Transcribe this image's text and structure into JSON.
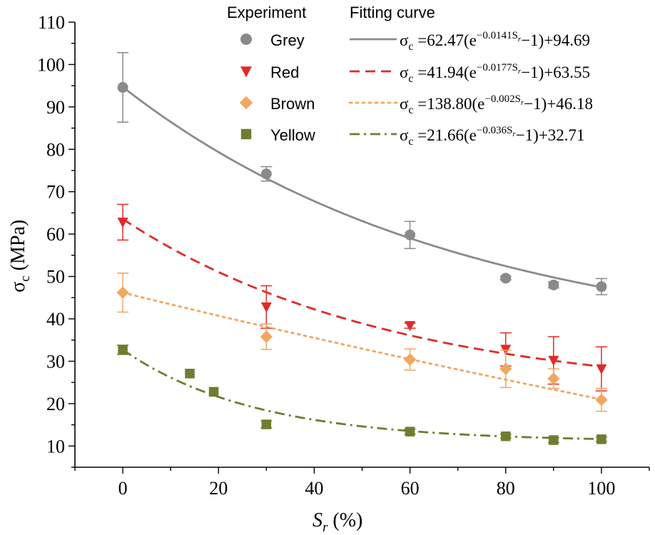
{
  "chart_data": {
    "type": "scatter",
    "xlabel_main": "S",
    "xlabel_sub": "r",
    "xlabel_unit": " (%)",
    "ylabel_main": "σ",
    "ylabel_sub": "c",
    "ylabel_unit": " (MPa)",
    "xlim": [
      -10,
      110
    ],
    "ylim": [
      5,
      110
    ],
    "x_ticks": [
      0,
      20,
      40,
      60,
      80,
      100
    ],
    "y_ticks": [
      10,
      20,
      30,
      40,
      50,
      60,
      70,
      80,
      90,
      100,
      110
    ],
    "legend_headers": {
      "experiment": "Experiment",
      "fitting": "Fitting curve"
    },
    "series": [
      {
        "name": "Grey",
        "color": "#8a8a8a",
        "marker": "circle",
        "line": "solid",
        "equation": {
          "prefix": "σ",
          "prefix_sub": "c",
          "mid": " =62.47(e",
          "exp": "−0.0141S",
          "exp_sub": "r",
          "suffix": "−1)+94.69"
        },
        "fit": {
          "a": 62.47,
          "k": 0.0141,
          "c": 94.69
        },
        "points": [
          {
            "x": 0,
            "y": 94.6,
            "err": 8.2
          },
          {
            "x": 30,
            "y": 74.2,
            "err": 1.7
          },
          {
            "x": 60,
            "y": 59.8,
            "err": 3.2
          },
          {
            "x": 80,
            "y": 49.6,
            "err": 0.4
          },
          {
            "x": 90,
            "y": 48.0,
            "err": 0.7
          },
          {
            "x": 100,
            "y": 47.6,
            "err": 1.9
          }
        ]
      },
      {
        "name": "Red",
        "color": "#e02a2a",
        "marker": "triangle-down",
        "line": "dash",
        "equation": {
          "prefix": "σ",
          "prefix_sub": "c",
          "mid": " =41.94(e",
          "exp": "−0.0177S",
          "exp_sub": "r",
          "suffix": "−1)+63.55"
        },
        "fit": {
          "a": 41.94,
          "k": 0.0177,
          "c": 63.55
        },
        "points": [
          {
            "x": 0,
            "y": 62.8,
            "err": 4.2
          },
          {
            "x": 30,
            "y": 42.8,
            "err": 5.0
          },
          {
            "x": 60,
            "y": 38.4,
            "err": 0.6
          },
          {
            "x": 80,
            "y": 32.8,
            "err": 3.9
          },
          {
            "x": 90,
            "y": 30.2,
            "err": 5.6
          },
          {
            "x": 100,
            "y": 28.2,
            "err": 5.2
          }
        ]
      },
      {
        "name": "Brown",
        "color": "#f2a65e",
        "marker": "diamond",
        "line": "dot",
        "equation": {
          "prefix": "σ",
          "prefix_sub": "c",
          "mid": " =138.80(e",
          "exp": "−0.002S",
          "exp_sub": "r",
          "suffix": "−1)+46.18"
        },
        "fit": {
          "a": 138.8,
          "k": 0.002,
          "c": 46.18
        },
        "points": [
          {
            "x": 0,
            "y": 46.2,
            "err": 4.6
          },
          {
            "x": 30,
            "y": 35.8,
            "err": 3.0
          },
          {
            "x": 60,
            "y": 30.4,
            "err": 2.5
          },
          {
            "x": 80,
            "y": 28.2,
            "err": 4.4
          },
          {
            "x": 90,
            "y": 25.9,
            "err": 2.3
          },
          {
            "x": 100,
            "y": 20.9,
            "err": 2.7
          }
        ]
      },
      {
        "name": "Yellow",
        "color": "#6e7d2f",
        "marker": "square",
        "line": "dashdot",
        "equation": {
          "prefix": "σ",
          "prefix_sub": "c",
          "mid": " =21.66(e",
          "exp": "−0.036S",
          "exp_sub": "r",
          "suffix": "−1)+32.71"
        },
        "fit": {
          "a": 21.66,
          "k": 0.036,
          "c": 32.71
        },
        "points": [
          {
            "x": 0,
            "y": 32.7,
            "err": 1.1
          },
          {
            "x": 14,
            "y": 27.1,
            "err": 0
          },
          {
            "x": 19,
            "y": 22.8,
            "err": 0
          },
          {
            "x": 30,
            "y": 15.1,
            "err": 0.8
          },
          {
            "x": 60,
            "y": 13.4,
            "err": 0.6
          },
          {
            "x": 80,
            "y": 12.3,
            "err": 0.5
          },
          {
            "x": 90,
            "y": 11.4,
            "err": 0.6
          },
          {
            "x": 100,
            "y": 11.6,
            "err": 0.5
          }
        ]
      }
    ]
  }
}
